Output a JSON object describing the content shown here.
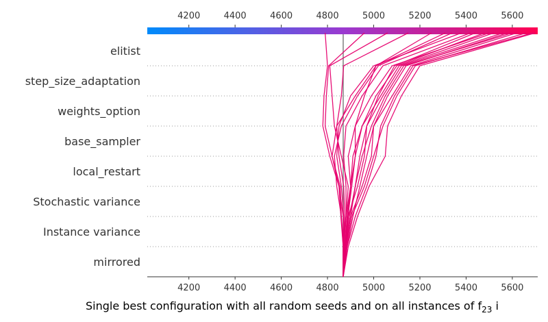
{
  "chart_data": {
    "type": "line",
    "title": "",
    "xlabel": "Single best configuration with all random seeds and on all instances of f",
    "xlabel_sub": "23",
    "xlabel_tail": " i",
    "ylabel": "",
    "xlim": [
      4020,
      5710
    ],
    "x_ticks": [
      4200,
      4400,
      4600,
      4800,
      5000,
      5200,
      5400,
      5600
    ],
    "x_tick_labels": [
      "4200",
      "4400",
      "4600",
      "4800",
      "5000",
      "5200",
      "5400",
      "5600"
    ],
    "features": [
      "elitist",
      "step_size_adaptation",
      "weights_option",
      "base_sampler",
      "local_restart",
      "Stochastic variance",
      "Instance variance",
      "mirrored"
    ],
    "base_value": 4868,
    "grid": "dotted horizontal",
    "colorbar": {
      "from": "#008bfb",
      "to": "#ff0052",
      "position": "top"
    },
    "line_color": "#e6006e",
    "series": [
      {
        "values": [
          4868,
          4868,
          4860,
          4855,
          4820,
          4790,
          4795,
          4805,
          4960
        ]
      },
      {
        "values": [
          4868,
          4868,
          4858,
          4850,
          4810,
          4780,
          4785,
          4800,
          4790
        ]
      },
      {
        "values": [
          4868,
          4868,
          4880,
          4890,
          4860,
          4830,
          4820,
          4810,
          5060
        ]
      },
      {
        "values": [
          4868,
          4870,
          4875,
          4870,
          4850,
          4840,
          4860,
          4870,
          5150
        ]
      },
      {
        "values": [
          4868,
          4868,
          4880,
          4900,
          4920,
          4920,
          4960,
          5010,
          5310
        ]
      },
      {
        "values": [
          4868,
          4875,
          4890,
          4930,
          4960,
          4970,
          5020,
          5090,
          5440
        ]
      },
      {
        "values": [
          4868,
          4880,
          4900,
          4950,
          4990,
          5000,
          5080,
          5160,
          5620
        ]
      },
      {
        "values": [
          4868,
          4890,
          4930,
          4980,
          5050,
          5060,
          5120,
          5200,
          5700
        ]
      },
      {
        "values": [
          4868,
          4885,
          4910,
          4940,
          4970,
          5000,
          5060,
          5140,
          5580
        ]
      },
      {
        "values": [
          4868,
          4880,
          4890,
          4900,
          4910,
          4950,
          5010,
          5100,
          5480
        ]
      },
      {
        "values": [
          4868,
          4872,
          4870,
          4860,
          4840,
          4850,
          4900,
          5000,
          5380
        ]
      },
      {
        "values": [
          4868,
          4878,
          4895,
          4920,
          4940,
          4970,
          5040,
          5120,
          5560
        ]
      },
      {
        "values": [
          4868,
          4875,
          4885,
          4900,
          4890,
          4920,
          4990,
          5080,
          5500
        ]
      },
      {
        "values": [
          4868,
          4882,
          4905,
          4960,
          5000,
          5040,
          5100,
          5180,
          5660
        ]
      },
      {
        "values": [
          4868,
          4873,
          4880,
          4880,
          4870,
          4880,
          4950,
          5040,
          5420
        ]
      },
      {
        "values": [
          4868,
          4870,
          4860,
          4840,
          4830,
          4860,
          4930,
          5020,
          5340
        ]
      },
      {
        "values": [
          4868,
          4885,
          4920,
          4970,
          5010,
          5030,
          5090,
          5170,
          5690
        ]
      },
      {
        "values": [
          4868,
          4879,
          4900,
          4920,
          4950,
          4990,
          5050,
          5130,
          5600
        ]
      },
      {
        "values": [
          4868,
          4876,
          4888,
          4905,
          4920,
          4950,
          5030,
          5110,
          5520
        ]
      },
      {
        "values": [
          4868,
          4870,
          4868,
          4850,
          4820,
          4840,
          4920,
          5010,
          5250
        ]
      }
    ]
  }
}
